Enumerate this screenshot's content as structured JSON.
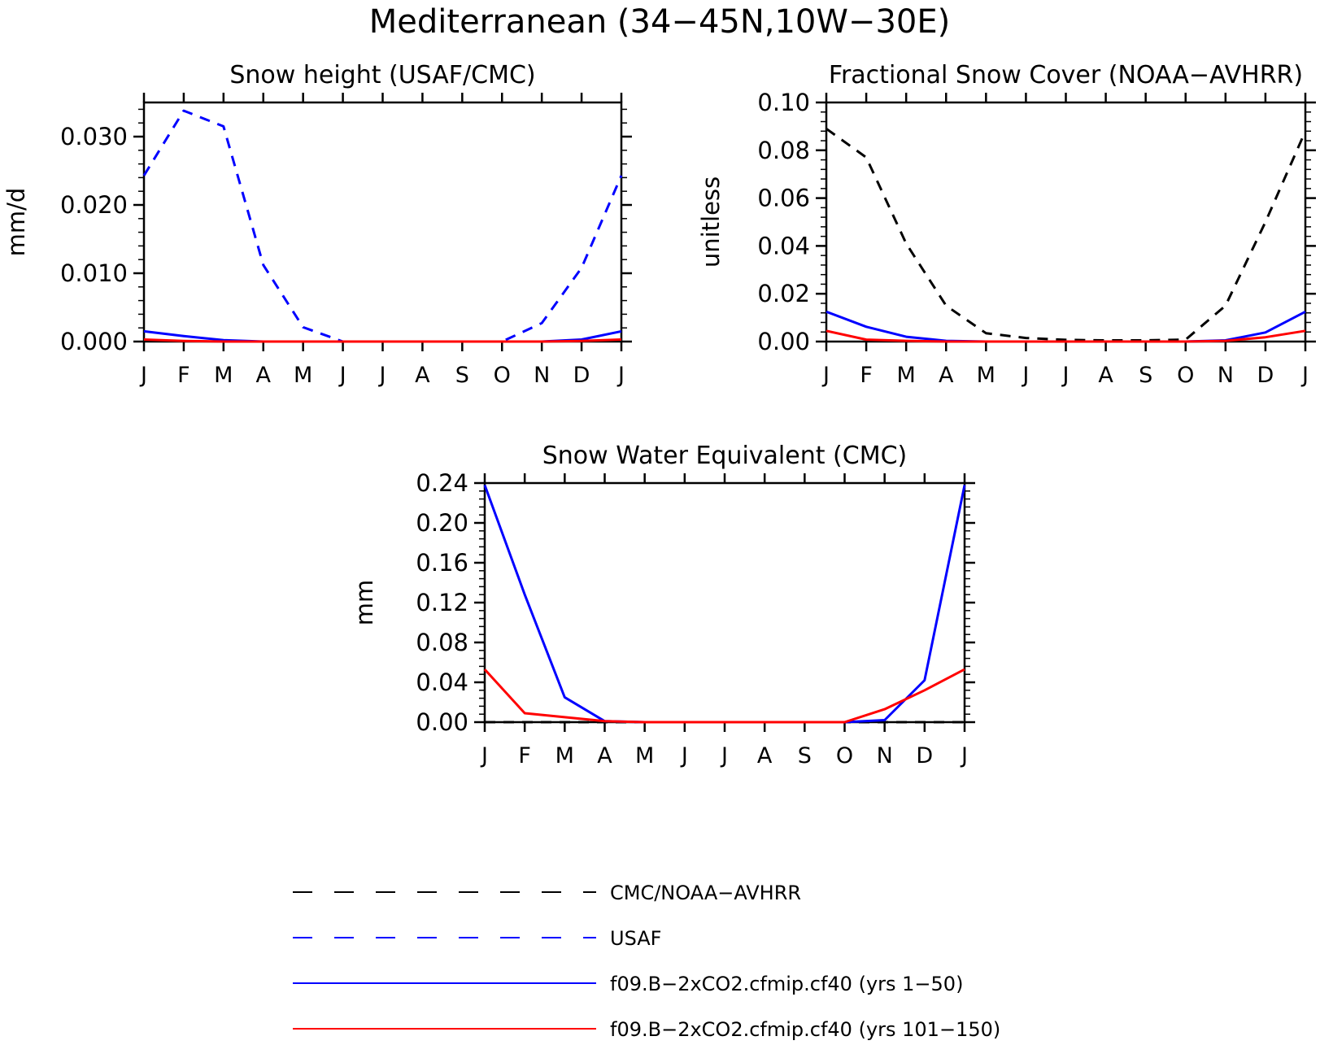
{
  "figure_title": "Mediterranean (34−45N,10W−30E)",
  "month_labels": [
    "J",
    "F",
    "M",
    "A",
    "M",
    "J",
    "J",
    "A",
    "S",
    "O",
    "N",
    "D",
    "J"
  ],
  "legend": [
    {
      "label": "CMC/NOAA−AVHRR",
      "color": "#000000",
      "dashed": true
    },
    {
      "label": "USAF",
      "color": "#0000ff",
      "dashed": true
    },
    {
      "label": "f09.B−2xCO2.cfmip.cf40 (yrs 1−50)",
      "color": "#0000ff",
      "dashed": false
    },
    {
      "label": "f09.B−2xCO2.cfmip.cf40 (yrs 101−150)",
      "color": "#ff0000",
      "dashed": false
    }
  ],
  "chart_data": [
    {
      "type": "line",
      "title": "Snow height (USAF/CMC)",
      "xlabel": "",
      "ylabel": "mm/d",
      "ylim": [
        0,
        0.035
      ],
      "yticks": [
        0,
        0.01,
        0.02,
        0.03
      ],
      "ytick_labels": [
        "0.000",
        "0.010",
        "0.020",
        "0.030"
      ],
      "categories": [
        "J",
        "F",
        "M",
        "A",
        "M",
        "J",
        "J",
        "A",
        "S",
        "O",
        "N",
        "D",
        "J"
      ],
      "series": [
        {
          "name": "USAF",
          "color": "#0000ff",
          "dashed": true,
          "values": [
            0.0243,
            0.0338,
            0.0315,
            0.0112,
            0.0021,
            0.0,
            0.0,
            0.0,
            0.0,
            0.0,
            0.0027,
            0.0108,
            0.0243
          ]
        },
        {
          "name": "f09.B−2xCO2.cfmip.cf40 (yrs 1−50)",
          "color": "#0000ff",
          "dashed": false,
          "values": [
            0.0015,
            0.0008,
            0.0002,
            0.0,
            0.0,
            0.0,
            0.0,
            0.0,
            0.0,
            0.0,
            0.0,
            0.0003,
            0.0015
          ]
        },
        {
          "name": "f09.B−2xCO2.cfmip.cf40 (yrs 101−150)",
          "color": "#ff0000",
          "dashed": false,
          "values": [
            0.0003,
            0.0001,
            0.0,
            0.0,
            0.0,
            0.0,
            0.0,
            0.0,
            0.0,
            0.0,
            0.0,
            0.0001,
            0.0003
          ]
        }
      ]
    },
    {
      "type": "line",
      "title": "Fractional Snow Cover (NOAA−AVHRR)",
      "xlabel": "",
      "ylabel": "unitless",
      "ylim": [
        0,
        0.1
      ],
      "yticks": [
        0,
        0.02,
        0.04,
        0.06,
        0.08,
        0.1
      ],
      "ytick_labels": [
        "0.00",
        "0.02",
        "0.04",
        "0.06",
        "0.08",
        "0.10"
      ],
      "categories": [
        "J",
        "F",
        "M",
        "A",
        "M",
        "J",
        "J",
        "A",
        "S",
        "O",
        "N",
        "D",
        "J"
      ],
      "series": [
        {
          "name": "CMC/NOAA−AVHRR",
          "color": "#000000",
          "dashed": true,
          "values": [
            0.089,
            0.077,
            0.041,
            0.015,
            0.0035,
            0.0015,
            0.0007,
            0.0005,
            0.0005,
            0.0008,
            0.015,
            0.05,
            0.088
          ]
        },
        {
          "name": "f09.B−2xCO2.cfmip.cf40 (yrs 1−50)",
          "color": "#0000ff",
          "dashed": false,
          "values": [
            0.0125,
            0.0062,
            0.002,
            0.0003,
            0.0,
            0.0,
            0.0,
            0.0,
            0.0,
            0.0,
            0.0005,
            0.0038,
            0.0125
          ]
        },
        {
          "name": "f09.B−2xCO2.cfmip.cf40 (yrs 101−150)",
          "color": "#ff0000",
          "dashed": false,
          "values": [
            0.0045,
            0.0008,
            0.0003,
            0.0,
            0.0,
            0.0,
            0.0,
            0.0,
            0.0,
            0.0,
            0.0003,
            0.0018,
            0.0045
          ]
        }
      ]
    },
    {
      "type": "line",
      "title": "Snow Water Equivalent (CMC)",
      "xlabel": "",
      "ylabel": "mm",
      "ylim": [
        0,
        0.24
      ],
      "yticks": [
        0,
        0.04,
        0.08,
        0.12,
        0.16,
        0.2,
        0.24
      ],
      "ytick_labels": [
        "0.00",
        "0.04",
        "0.08",
        "0.12",
        "0.16",
        "0.20",
        "0.24"
      ],
      "categories": [
        "J",
        "F",
        "M",
        "A",
        "M",
        "J",
        "J",
        "A",
        "S",
        "O",
        "N",
        "D",
        "J"
      ],
      "series": [
        {
          "name": "CMC/NOAA−AVHRR",
          "color": "#000000",
          "dashed": true,
          "values": [
            0.0,
            0.0,
            0.0,
            0.0,
            0.0,
            0.0,
            0.0,
            0.0,
            0.0,
            0.0,
            0.0,
            0.0,
            0.0
          ]
        },
        {
          "name": "f09.B−2xCO2.cfmip.cf40 (yrs 1−50)",
          "color": "#0000ff",
          "dashed": false,
          "values": [
            0.238,
            0.128,
            0.025,
            0.001,
            0.0,
            0.0,
            0.0,
            0.0,
            0.0,
            0.0,
            0.002,
            0.042,
            0.238
          ]
        },
        {
          "name": "f09.B−2xCO2.cfmip.cf40 (yrs 101−150)",
          "color": "#ff0000",
          "dashed": false,
          "values": [
            0.053,
            0.009,
            0.005,
            0.001,
            0.0,
            0.0,
            0.0,
            0.0,
            0.0,
            0.0,
            0.013,
            0.032,
            0.053
          ]
        }
      ]
    }
  ]
}
